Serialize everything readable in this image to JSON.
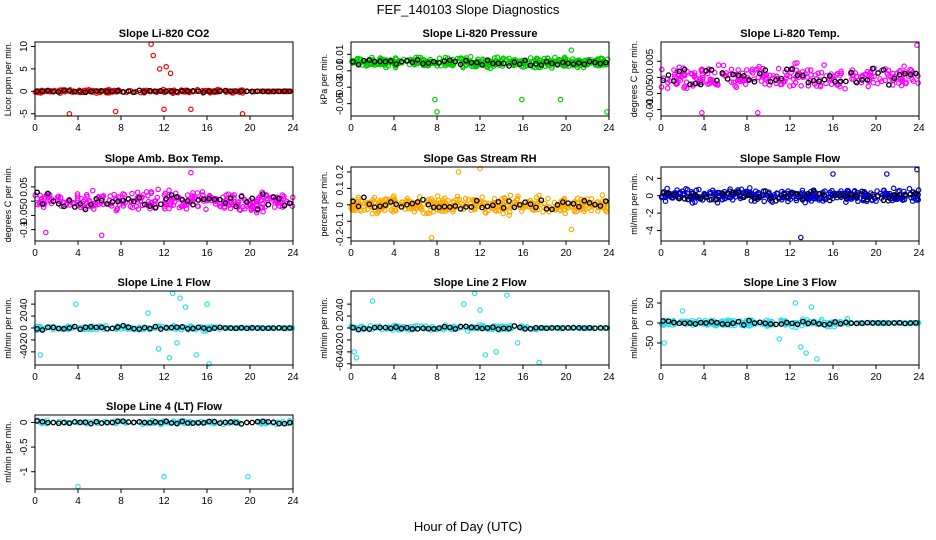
{
  "figure": {
    "title": "FEF_140103  Slope Diagnostics",
    "xlabel": "Hour of Day (UTC)"
  },
  "chart_data": [
    {
      "type": "scatter",
      "title": "Slope Li-820 CO2",
      "ylabel": "Licor ppm per min.",
      "xlim": [
        0,
        24
      ],
      "xticks": [
        0,
        4,
        8,
        12,
        16,
        20,
        24
      ],
      "ylim": [
        -5.5,
        11
      ],
      "yticks": [
        -5,
        0,
        5,
        10
      ],
      "color": "#ff0000",
      "spread": 0.5,
      "center": 0,
      "outliers": [
        [
          10.8,
          10.5
        ],
        [
          11.0,
          8
        ],
        [
          11.6,
          5
        ],
        [
          12.2,
          5.5
        ],
        [
          12.6,
          4
        ],
        [
          3.2,
          -5
        ],
        [
          7.5,
          -4.5
        ],
        [
          12.0,
          -4
        ],
        [
          14.5,
          -4
        ],
        [
          19.3,
          -5
        ]
      ],
      "calm_after": 19.5,
      "n_dense": 230
    },
    {
      "type": "scatter",
      "title": "Slope Li-820 Pressure",
      "ylabel": "kPa per min.",
      "xlim": [
        0,
        24
      ],
      "xticks": [
        0,
        4,
        8,
        12,
        16,
        20,
        24
      ],
      "ylim": [
        -0.065,
        0.025
      ],
      "yticks": [
        -0.05,
        -0.03,
        -0.01,
        0.01
      ],
      "color": "#00cc00",
      "spread": 0.008,
      "center": 0.0,
      "outliers": [
        [
          7.8,
          -0.045
        ],
        [
          8.0,
          -0.06
        ],
        [
          15.9,
          -0.045
        ],
        [
          19.5,
          -0.045
        ],
        [
          23.8,
          -0.06
        ],
        [
          20.5,
          0.015
        ]
      ],
      "calm_after": 30,
      "n_dense": 420
    },
    {
      "type": "scatter",
      "title": "Slope Li-820 Temp.",
      "ylabel": "degrees C per min.",
      "xlim": [
        0,
        24
      ],
      "xticks": [
        0,
        4,
        8,
        12,
        16,
        20,
        24
      ],
      "ylim": [
        -0.012,
        0.011
      ],
      "yticks": [
        -0.01,
        -0.005,
        0.0,
        0.005
      ],
      "color": "#ff00ff",
      "spread": 0.005,
      "center": 0.0,
      "outliers": [
        [
          23.8,
          0.01
        ],
        [
          3.8,
          -0.011
        ],
        [
          9.0,
          -0.011
        ]
      ],
      "calm_after": 30,
      "n_dense": 260
    },
    {
      "type": "scatter",
      "title": "Slope Amb. Box Temp.",
      "ylabel": "degrees C per min.",
      "xlim": [
        0,
        24
      ],
      "xticks": [
        0,
        4,
        8,
        12,
        16,
        20,
        24
      ],
      "ylim": [
        -0.14,
        0.12
      ],
      "yticks": [
        -0.1,
        -0.05,
        0.0,
        0.05
      ],
      "color": "#ff00ff",
      "spread": 0.05,
      "center": 0.0,
      "outliers": [
        [
          14.5,
          0.1
        ],
        [
          1.0,
          -0.11
        ],
        [
          6.2,
          -0.12
        ]
      ],
      "calm_after": 30,
      "n_dense": 300
    },
    {
      "type": "scatter",
      "title": "Slope Gas Stream RH",
      "ylabel": "percent per min.",
      "xlim": [
        0,
        24
      ],
      "xticks": [
        0,
        4,
        8,
        12,
        16,
        20,
        24
      ],
      "ylim": [
        -0.22,
        0.23
      ],
      "yticks": [
        -0.2,
        -0.1,
        0.0,
        0.1,
        0.2
      ],
      "color": "#ffaa00",
      "spread": 0.07,
      "center": 0.0,
      "outliers": [
        [
          7.5,
          -0.2
        ],
        [
          12.0,
          0.22
        ],
        [
          10.0,
          0.2
        ],
        [
          20.5,
          -0.15
        ]
      ],
      "calm_after": 30,
      "n_dense": 380
    },
    {
      "type": "scatter",
      "title": "Slope Sample Flow",
      "ylabel": "ml/min per min.",
      "xlim": [
        0,
        24
      ],
      "xticks": [
        0,
        4,
        8,
        12,
        16,
        20,
        24
      ],
      "ylim": [
        -5.2,
        3.3
      ],
      "yticks": [
        -4,
        -2,
        0,
        2
      ],
      "color": "#0000cc",
      "spread": 1.0,
      "center": 0.0,
      "outliers": [
        [
          13.0,
          -4.8
        ],
        [
          23.8,
          3
        ],
        [
          16.0,
          2.5
        ],
        [
          21.0,
          2.5
        ]
      ],
      "calm_after": 30,
      "n_dense": 360
    },
    {
      "type": "scatter",
      "title": "Slope Line 1 Flow",
      "ylabel": "ml/min per min.",
      "xlim": [
        0,
        24
      ],
      "xticks": [
        0,
        4,
        8,
        12,
        16,
        20,
        24
      ],
      "ylim": [
        -62,
        62
      ],
      "yticks": [
        -40,
        -20,
        0,
        20,
        40
      ],
      "color": "#33ddee",
      "spread": 6,
      "center": 0,
      "outliers": [
        [
          0.5,
          -45
        ],
        [
          3.8,
          40
        ],
        [
          12.8,
          58
        ],
        [
          13.5,
          50
        ],
        [
          14.0,
          35
        ],
        [
          11.5,
          -35
        ],
        [
          12.5,
          -50
        ],
        [
          15.0,
          -45
        ],
        [
          16.2,
          -60
        ],
        [
          16.0,
          40
        ],
        [
          10.5,
          25
        ],
        [
          13.2,
          -25
        ]
      ],
      "calm_after": 17.5,
      "n_dense": 200
    },
    {
      "type": "scatter",
      "title": "Slope Line 2 Flow",
      "ylabel": "ml/min per min.",
      "xlim": [
        0,
        24
      ],
      "xticks": [
        0,
        4,
        8,
        12,
        16,
        20,
        24
      ],
      "ylim": [
        -62,
        62
      ],
      "yticks": [
        -60,
        -40,
        -20,
        0,
        20,
        40
      ],
      "color": "#33ddee",
      "spread": 6,
      "center": 0,
      "outliers": [
        [
          0.3,
          -40
        ],
        [
          0.5,
          -50
        ],
        [
          2.0,
          45
        ],
        [
          10.5,
          40
        ],
        [
          11.5,
          58
        ],
        [
          14.5,
          55
        ],
        [
          12.5,
          -45
        ],
        [
          13.5,
          -40
        ],
        [
          17.5,
          -58
        ],
        [
          12.0,
          30
        ],
        [
          15.5,
          -25
        ]
      ],
      "calm_after": 17.5,
      "n_dense": 200
    },
    {
      "type": "scatter",
      "title": "Slope Line 3 Flow",
      "ylabel": "ml/min per min.",
      "xlim": [
        0,
        24
      ],
      "xticks": [
        0,
        4,
        8,
        12,
        16,
        20,
        24
      ],
      "ylim": [
        -105,
        80
      ],
      "yticks": [
        -50,
        0,
        50
      ],
      "color": "#33ddee",
      "spread": 12,
      "center": 0,
      "outliers": [
        [
          13.0,
          -60
        ],
        [
          13.5,
          -75
        ],
        [
          14.5,
          -90
        ],
        [
          14.0,
          40
        ],
        [
          12.5,
          50
        ],
        [
          2.0,
          30
        ],
        [
          0.3,
          -50
        ],
        [
          11.0,
          -40
        ]
      ],
      "calm_after": 17.5,
      "n_dense": 260
    },
    {
      "type": "scatter",
      "title": "Slope Line 4 (LT) Flow",
      "ylabel": "ml/min per min.",
      "xlim": [
        0,
        24
      ],
      "xticks": [
        0,
        4,
        8,
        12,
        16,
        20,
        24
      ],
      "ylim": [
        -1.35,
        0.15
      ],
      "yticks": [
        -1.0,
        -0.5,
        0.0
      ],
      "color": "#33ddee",
      "spread": 0.05,
      "center": 0.0,
      "outliers": [
        [
          4.0,
          -1.3
        ],
        [
          12.0,
          -1.1
        ],
        [
          19.8,
          -1.1
        ]
      ],
      "calm_after": 30,
      "n_dense": 110
    }
  ]
}
